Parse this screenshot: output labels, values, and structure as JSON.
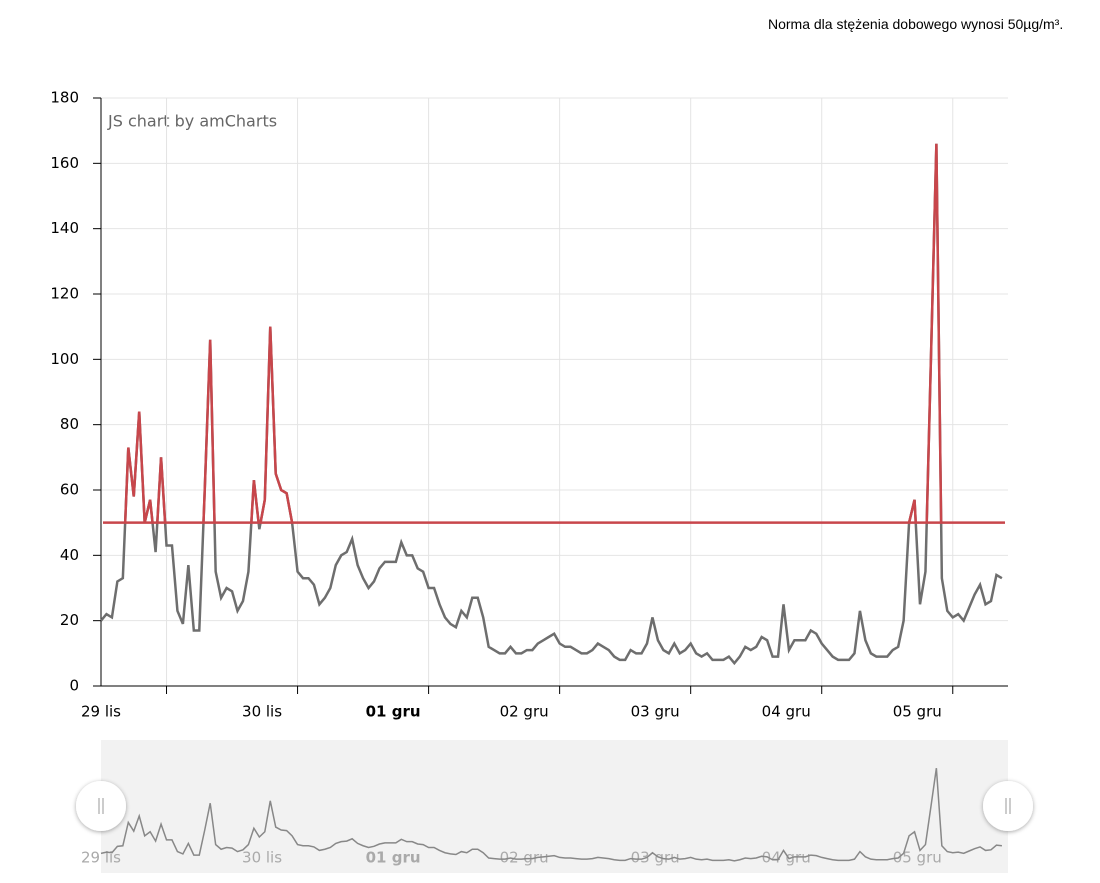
{
  "chart_data": {
    "type": "line",
    "annotation": "Norma dla stężenia dobowego wynosi 50µg/m³.",
    "watermark": "JS chart by amCharts",
    "categories": [
      "29 lis",
      null,
      null,
      null,
      null,
      null,
      null,
      null,
      null,
      null,
      null,
      null,
      null,
      null,
      null,
      null,
      null,
      null,
      null,
      null,
      null,
      null,
      null,
      null,
      "30 lis",
      null,
      null,
      null,
      null,
      null,
      null,
      null,
      null,
      null,
      null,
      null,
      null,
      null,
      null,
      null,
      null,
      null,
      null,
      null,
      null,
      null,
      null,
      null,
      "01 gru",
      null,
      null,
      null,
      null,
      null,
      null,
      null,
      null,
      null,
      null,
      null,
      null,
      null,
      null,
      null,
      null,
      null,
      null,
      null,
      null,
      null,
      null,
      null,
      "02 gru",
      null,
      null,
      null,
      null,
      null,
      null,
      null,
      null,
      null,
      null,
      null,
      null,
      null,
      null,
      null,
      null,
      null,
      null,
      null,
      null,
      null,
      null,
      null,
      "03 gru",
      null,
      null,
      null,
      null,
      null,
      null,
      null,
      null,
      null,
      null,
      null,
      null,
      null,
      null,
      null,
      null,
      null,
      null,
      null,
      null,
      null,
      null,
      null,
      "04 gru",
      null,
      null,
      null,
      null,
      null,
      null,
      null,
      null,
      null,
      null,
      null,
      null,
      null,
      null,
      null,
      null,
      null,
      null,
      null,
      null,
      null,
      null,
      null,
      "05 gru",
      null,
      null,
      null,
      null,
      null,
      null,
      null,
      null,
      null,
      null,
      null,
      null,
      null,
      null,
      null,
      null,
      null,
      null,
      null,
      null,
      null
    ],
    "values": [
      20,
      22,
      21,
      32,
      33,
      73,
      58,
      84,
      50,
      57,
      41,
      70,
      43,
      43,
      23,
      19,
      37,
      17,
      17,
      60,
      106,
      35,
      27,
      30,
      29,
      23,
      26,
      35,
      63,
      48,
      57,
      110,
      65,
      60,
      59,
      50,
      35,
      33,
      33,
      31,
      25,
      27,
      30,
      37,
      40,
      41,
      45,
      37,
      33,
      30,
      32,
      36,
      38,
      38,
      38,
      44,
      40,
      40,
      36,
      35,
      30,
      30,
      25,
      21,
      19,
      18,
      23,
      21,
      27,
      27,
      21,
      12,
      11,
      10,
      10,
      12,
      10,
      10,
      11,
      11,
      13,
      14,
      15,
      16,
      13,
      12,
      12,
      11,
      10,
      10,
      11,
      13,
      12,
      11,
      9,
      8,
      8,
      11,
      10,
      10,
      13,
      21,
      14,
      11,
      10,
      13,
      10,
      11,
      13,
      10,
      9,
      10,
      8,
      8,
      8,
      9,
      7,
      9,
      12,
      11,
      12,
      15,
      14,
      9,
      9,
      25,
      11,
      14,
      14,
      14,
      17,
      16,
      13,
      11,
      9,
      8,
      8,
      8,
      10,
      23,
      14,
      10,
      9,
      9,
      9,
      11,
      12,
      20,
      50,
      57,
      25,
      35,
      100,
      166,
      33,
      23,
      21,
      22,
      20,
      24,
      28,
      31,
      25,
      26,
      34,
      33
    ],
    "color": "#6e6e6e",
    "threshold": 50,
    "threshold_color": "#c8464b",
    "ylim": [
      0,
      180
    ],
    "yticks": [
      0,
      20,
      40,
      60,
      80,
      100,
      120,
      140,
      160,
      180
    ],
    "grid": true
  }
}
